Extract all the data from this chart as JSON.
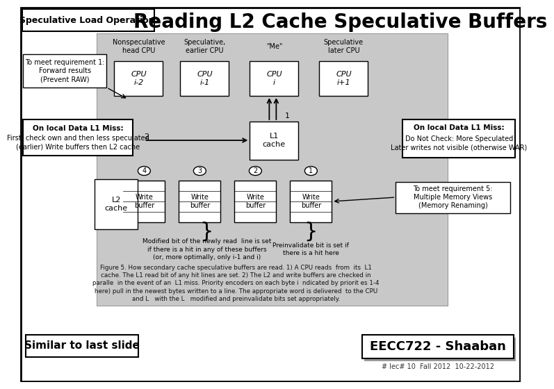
{
  "title": "Reading L2 Cache Speculative Buffers",
  "subtitle_box": "Speculative Load Operation:",
  "bg_color": "#ffffff",
  "gray_bg": "#c8c8c8",
  "annotation_top_left": "To meet requirement 1:\nForward results\n(Prevent RAW)",
  "annotation_mid_left_title": "On local Data L1 Miss:",
  "annotation_mid_left_body": "First, check own and then less speculated\n(earlier) Write buffers then L2 cache",
  "annotation_mid_right_title": "On local Data L1 Miss:",
  "annotation_mid_right_body": "Do Not Check: More Speculated\nLater writes not visible (otherwise WAR)",
  "annotation_bottom_right": "To meet requirement 5:\nMultiple Memory Views\n(Memory Renaming)",
  "cpu_labels": [
    "Nonspeculative\nhead CPU",
    "Speculative,\nearlier CPU",
    "\"Me\"",
    "Speculative\nlater CPU"
  ],
  "cpu_ids": [
    "CPU\ni-2",
    "CPU\ni-1",
    "CPU\ni",
    "CPU\ni+1"
  ],
  "l1_label": "L1\ncache",
  "l2_label": "L2\ncache",
  "write_buffer_nums": [
    "4",
    "3",
    "2",
    "1"
  ],
  "note1": "Modified bit of the newly read  line is set\nif there is a hit in any of these buffers\n(or, more optimally, only i-1 and i)",
  "note2": "Preinvalidate bit is set if\nthere is a hit here",
  "figure_caption": "Figure 5. How secondary cache speculative buffers are read. 1) A CPU reads  from  its  L1\ncache. The L1 read bit of any hit lines are set. 2) The L2 and write buffers are checked in\nparalle  in the event of an  L1 miss. Priority encoders on each byte i  ndicated by priorit es 1-4\nhere) pull in the newest bytes written to a line. The appropriate word is delivered  to the CPU\nand L   with the L   modified and preinvalidate bits set appropriately.",
  "bottom_left": "Similar to last slide",
  "bottom_right": "EECC722 - Shaaban",
  "bottom_note": "# lec# 10  Fall 2012  10-22-2012",
  "num1": "1",
  "num2": "2"
}
